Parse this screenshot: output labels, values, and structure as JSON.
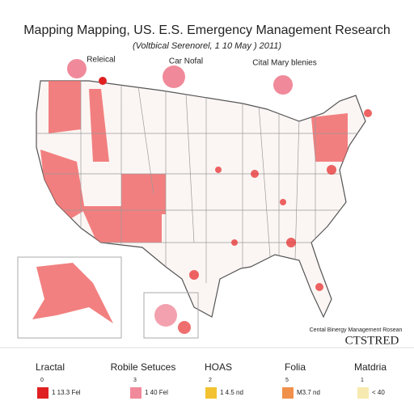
{
  "header": {
    "title": "Mapping Mapping, US. E.S. Emergency Management Research",
    "subtitle": "(Voltbical Serenorel, 1 10 May ) 2011)"
  },
  "map": {
    "insets": [
      "Releical",
      "Car Nofal",
      "Cital Mary blenies"
    ],
    "credit": "Cental Binergy Management Rosean",
    "credit_mark": "CTSTRED"
  },
  "legend": {
    "items": [
      {
        "name": "Lractal",
        "count": "0",
        "note": "1 13.3 Fel",
        "color": "#e02020"
      },
      {
        "name": "Robile Setuces",
        "count": "3",
        "note": "1 40 Fel",
        "color": "#f08a9a"
      },
      {
        "name": "HOAS",
        "count": "2",
        "note": "1 4.5 nd",
        "color": "#f2c230"
      },
      {
        "name": "Folia",
        "count": "5",
        "note": "M3.7 nd",
        "color": "#f0904a"
      },
      {
        "name": "Matdria",
        "count": "1",
        "note": "< 40",
        "color": "#f7eab0"
      }
    ]
  }
}
